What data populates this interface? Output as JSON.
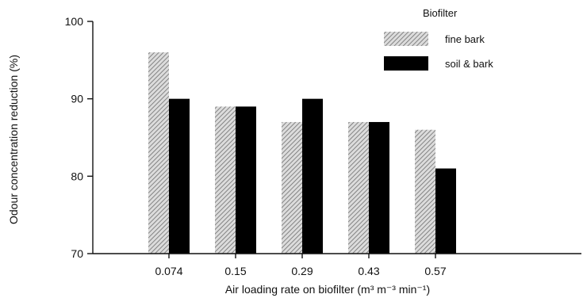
{
  "chart_data": {
    "type": "bar",
    "title": "",
    "xlabel": "Air loading rate on biofilter (m³ m⁻³ min⁻¹)",
    "ylabel": "Odour concentration reduction (%)",
    "ylim": [
      70,
      100
    ],
    "yticks": [
      70,
      80,
      90,
      100
    ],
    "grid": false,
    "legend_position": "top-right",
    "legend_title": "Biofilter",
    "categories": [
      "0.074",
      "0.15",
      "0.29",
      "0.43",
      "0.57"
    ],
    "series": [
      {
        "name": "fine bark",
        "values": [
          96,
          89,
          87,
          87,
          86
        ],
        "fill": "hatched-gray",
        "color": "#9a9a9a"
      },
      {
        "name": "soil & bark",
        "values": [
          90,
          89,
          90,
          87,
          81
        ],
        "fill": "solid-black",
        "color": "#000000"
      }
    ]
  }
}
